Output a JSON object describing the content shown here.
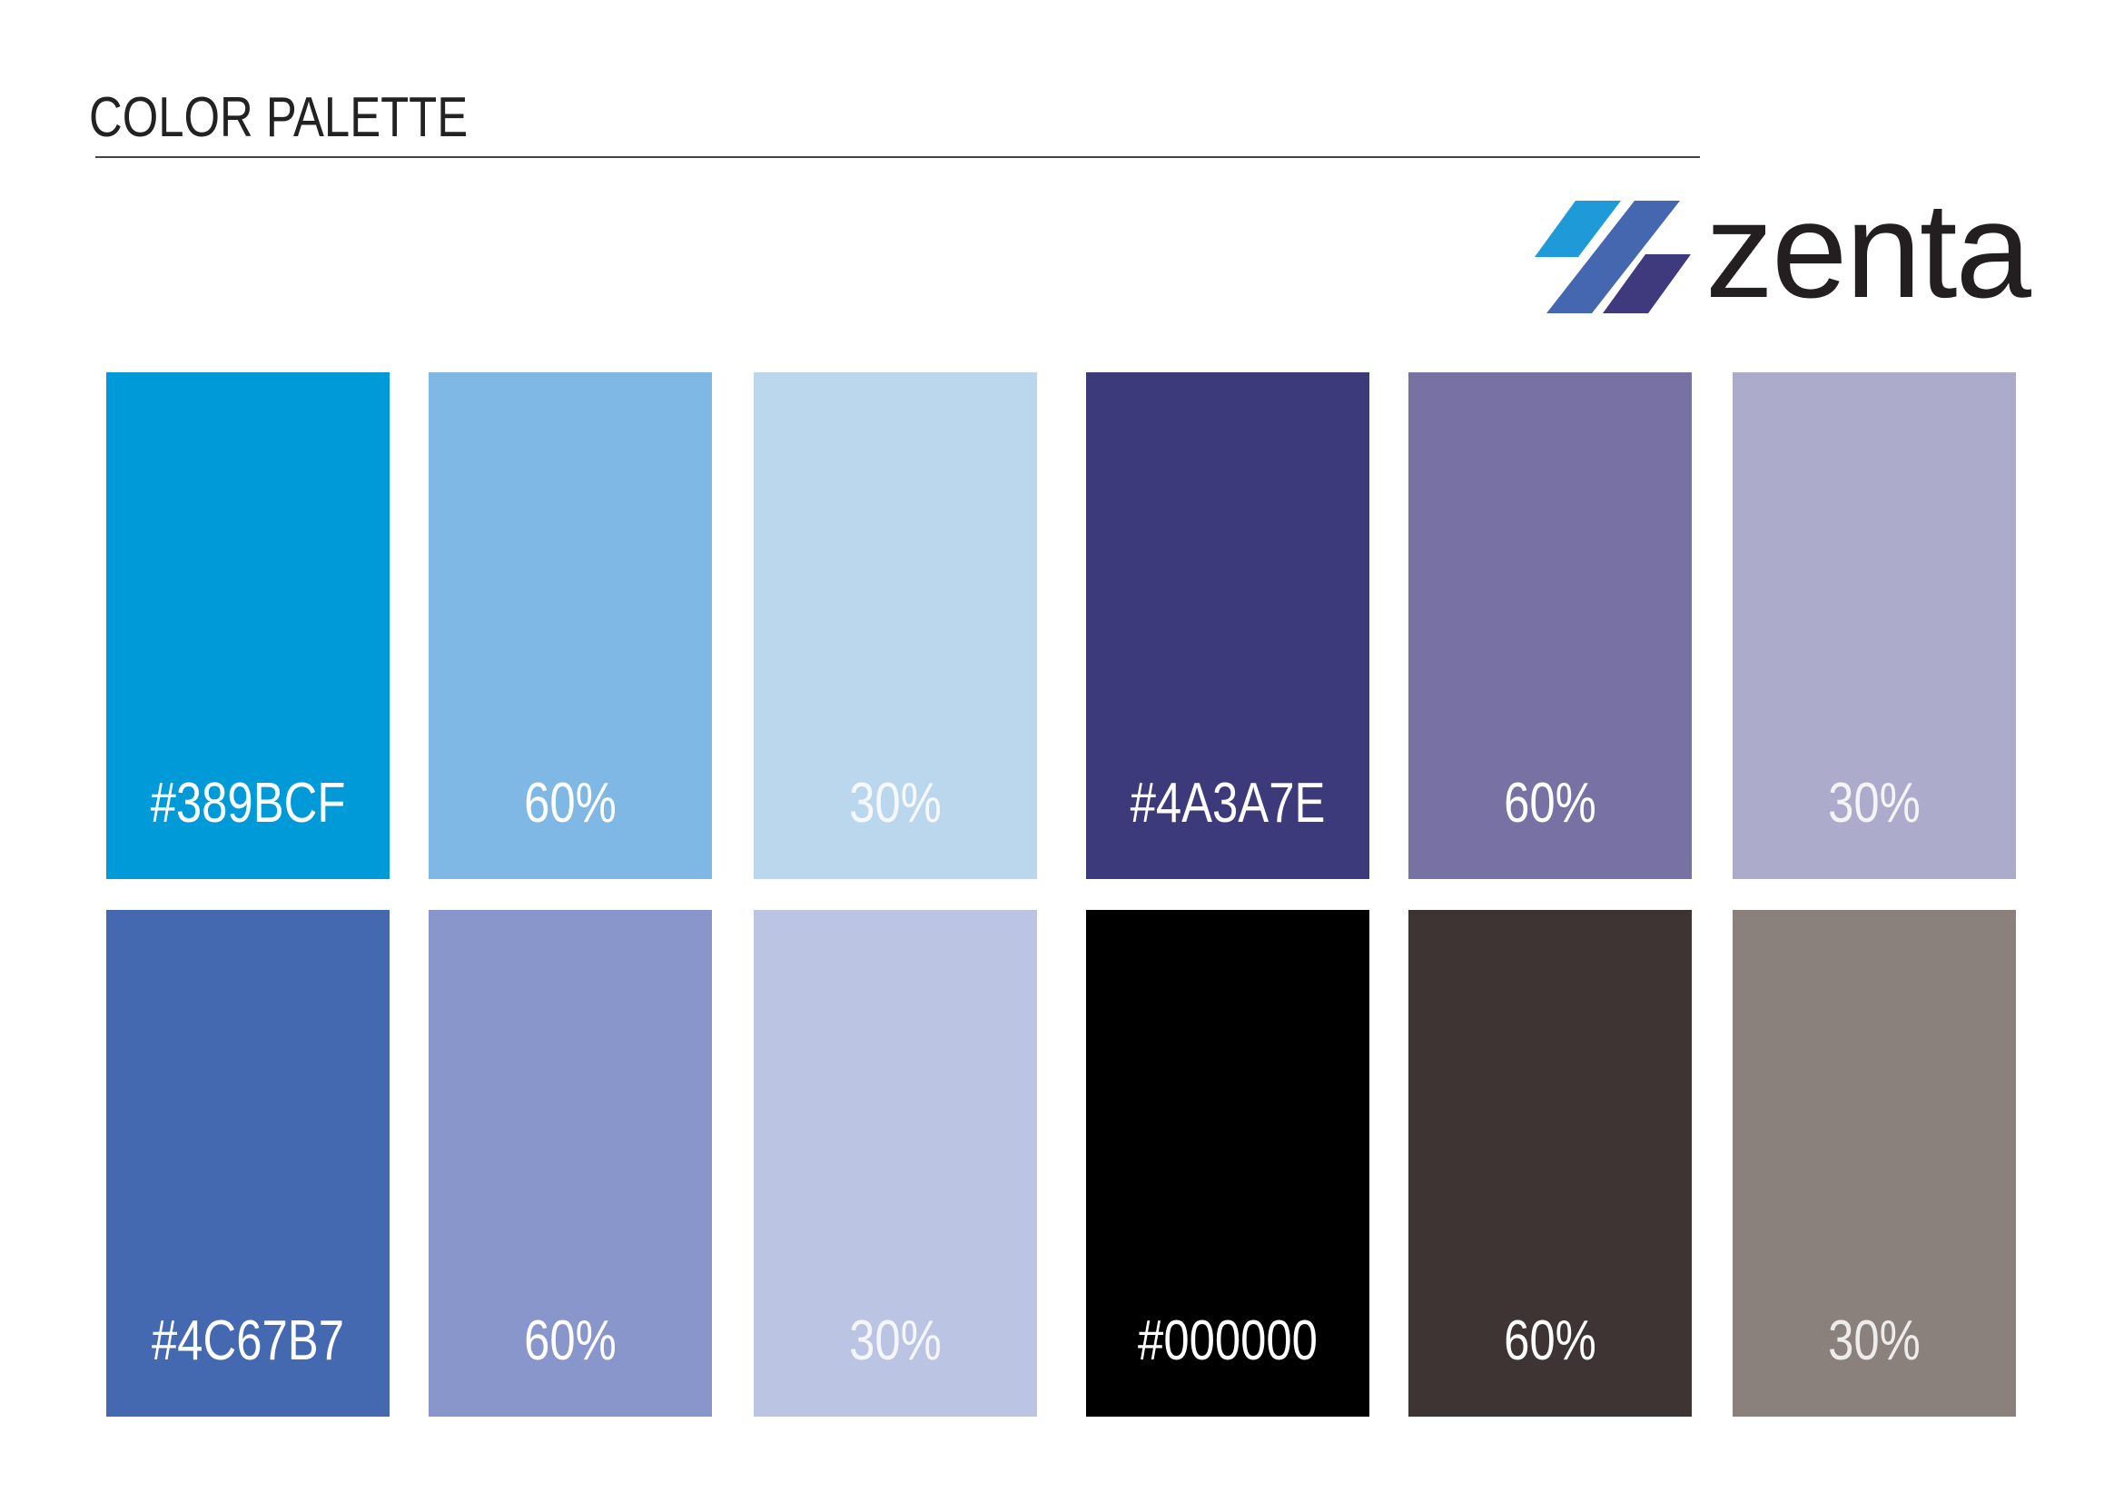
{
  "header": {
    "title": "COLOR PALETTE",
    "logo": "zenta"
  },
  "palette": {
    "rows": [
      [
        {
          "label": "#389BCF",
          "color": "#009ad8"
        },
        {
          "label": "60%",
          "color": "#7fb8e4"
        },
        {
          "label": "30%",
          "color": "#bbd7ee"
        },
        {
          "label": "#4A3A7E",
          "color": "#3d3a7b"
        },
        {
          "label": "60%",
          "color": "#7872a4"
        },
        {
          "label": "30%",
          "color": "#acabcc"
        }
      ],
      [
        {
          "label": "#4C67B7",
          "color": "#4569b0"
        },
        {
          "label": "60%",
          "color": "#8996cb"
        },
        {
          "label": "30%",
          "color": "#bbc4e3"
        },
        {
          "label": "#000000",
          "color": "#000000"
        },
        {
          "label": "60%",
          "color": "#3e3433"
        },
        {
          "label": "30%",
          "color": "#8a817c"
        }
      ]
    ]
  }
}
